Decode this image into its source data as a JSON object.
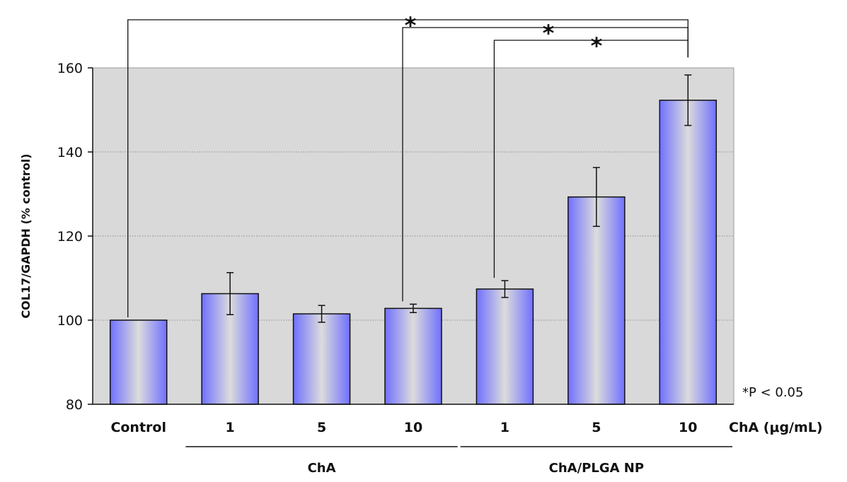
{
  "chart_data": {
    "type": "bar",
    "ylabel": "COL17/GAPDH (% control)",
    "ylim": [
      80,
      160
    ],
    "yticks": [
      80,
      100,
      120,
      140,
      160
    ],
    "grid": true,
    "categories": [
      "Control",
      "1",
      "5",
      "10",
      "1",
      "5",
      "10"
    ],
    "values": [
      100,
      106.3,
      101.5,
      102.8,
      107.4,
      129.3,
      152.3
    ],
    "errors": [
      0,
      5.0,
      2.0,
      1.0,
      2.0,
      7.0,
      6.0
    ],
    "groups": [
      {
        "label": "ChA",
        "members": [
          1,
          2,
          3
        ]
      },
      {
        "label": "ChA/PLGA NP",
        "members": [
          4,
          5,
          6
        ]
      }
    ],
    "x_unit_label": "ChA (μg/mL)",
    "significance": [
      {
        "from": 0,
        "to": 6,
        "label": "*"
      },
      {
        "from": 3,
        "to": 6,
        "label": "*"
      },
      {
        "from": 4,
        "to": 6,
        "label": "*"
      }
    ],
    "note": "*P < 0.05",
    "colors": {
      "plot_bg": "#d9d9d9",
      "bar_edge": "#7070ff",
      "bar_mid": "#dcdcdc",
      "grid": "#8a8a8a"
    }
  }
}
